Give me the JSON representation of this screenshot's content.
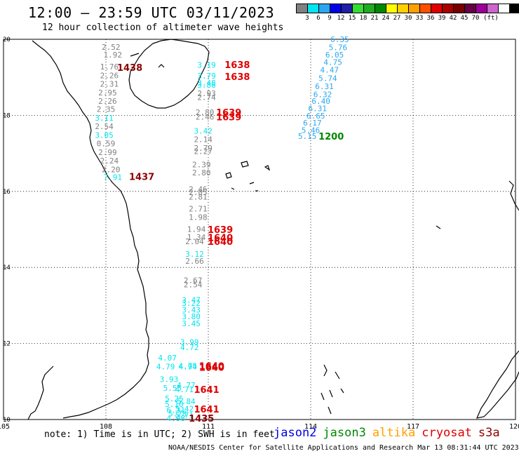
{
  "header": {
    "title": "12:00 – 23:59 UTC 03/11/2023",
    "subtitle": "12 hour collection of altimeter wave heights"
  },
  "colorbar": {
    "colors": [
      "#808080",
      "#00e5f0",
      "#2aa7f0",
      "#0000e6",
      "#2020a0",
      "#33dd33",
      "#22aa22",
      "#008800",
      "#ffff00",
      "#ffd000",
      "#ffa000",
      "#ff5000",
      "#e00000",
      "#aa0000",
      "#770000",
      "#660044",
      "#990099",
      "#cc66cc",
      "#ffffff",
      "#000000"
    ],
    "labels": [
      "3",
      "6",
      "9",
      "12",
      "15",
      "18",
      "21",
      "24",
      "27",
      "30",
      "33",
      "36",
      "39",
      "42",
      "45",
      "70",
      "(ft)"
    ]
  },
  "axes": {
    "lon_ticks": [
      "105",
      "108",
      "111",
      "114",
      "117",
      "120"
    ],
    "lat_ticks": [
      "20",
      "18",
      "16",
      "14",
      "12",
      "10"
    ]
  },
  "chart_data": {
    "type": "scatter",
    "x_axis": "longitude",
    "y_axis": "latitude",
    "xlim": [
      105,
      120
    ],
    "ylim": [
      10,
      20
    ],
    "color_key": {
      "gray": "#808080",
      "cyan": "#00e5f0",
      "blue": "#2aa7f0",
      "red": "#e00000",
      "dred": "#8b0000",
      "green": "#008800"
    },
    "wave_heights": [
      {
        "lon": 108.15,
        "lat": 19.8,
        "v": "2.52",
        "c": "gray"
      },
      {
        "lon": 108.2,
        "lat": 19.59,
        "v": "1.92",
        "c": "gray"
      },
      {
        "lon": 108.1,
        "lat": 19.28,
        "v": "1.76",
        "c": "gray"
      },
      {
        "lon": 108.1,
        "lat": 19.05,
        "v": "2.26",
        "c": "gray"
      },
      {
        "lon": 108.1,
        "lat": 18.83,
        "v": "2.31",
        "c": "gray"
      },
      {
        "lon": 108.05,
        "lat": 18.6,
        "v": "2.95",
        "c": "gray"
      },
      {
        "lon": 108.05,
        "lat": 18.38,
        "v": "2.26",
        "c": "gray"
      },
      {
        "lon": 108.0,
        "lat": 18.16,
        "v": "2.35",
        "c": "gray"
      },
      {
        "lon": 107.95,
        "lat": 17.93,
        "v": "3.11",
        "c": "cyan"
      },
      {
        "lon": 107.95,
        "lat": 17.71,
        "v": "2.54",
        "c": "gray"
      },
      {
        "lon": 107.95,
        "lat": 17.48,
        "v": "3.05",
        "c": "cyan"
      },
      {
        "lon": 108.0,
        "lat": 17.26,
        "v": "0.59",
        "c": "gray"
      },
      {
        "lon": 108.05,
        "lat": 17.03,
        "v": "2.99",
        "c": "gray"
      },
      {
        "lon": 108.1,
        "lat": 16.81,
        "v": "2.24",
        "c": "gray"
      },
      {
        "lon": 108.15,
        "lat": 16.58,
        "v": "2.20",
        "c": "gray"
      },
      {
        "lon": 108.2,
        "lat": 16.37,
        "v": "7.91",
        "c": "cyan"
      },
      {
        "lon": 110.95,
        "lat": 19.33,
        "v": "3.19",
        "c": "cyan"
      },
      {
        "lon": 110.95,
        "lat": 19.04,
        "v": "3.79",
        "c": "cyan"
      },
      {
        "lon": 110.95,
        "lat": 18.86,
        "v": "3.48",
        "c": "cyan"
      },
      {
        "lon": 110.95,
        "lat": 18.8,
        "v": "3.88",
        "c": "cyan"
      },
      {
        "lon": 110.95,
        "lat": 18.58,
        "v": "2.93",
        "c": "gray"
      },
      {
        "lon": 110.95,
        "lat": 18.48,
        "v": "2.74",
        "c": "gray"
      },
      {
        "lon": 110.9,
        "lat": 18.08,
        "v": "2.80",
        "c": "gray"
      },
      {
        "lon": 110.9,
        "lat": 17.96,
        "v": "2.46",
        "c": "gray"
      },
      {
        "lon": 110.85,
        "lat": 17.59,
        "v": "3.42",
        "c": "cyan"
      },
      {
        "lon": 110.85,
        "lat": 17.37,
        "v": "2.14",
        "c": "gray"
      },
      {
        "lon": 110.85,
        "lat": 17.14,
        "v": "2.79",
        "c": "gray"
      },
      {
        "lon": 110.85,
        "lat": 17.06,
        "v": "2.27",
        "c": "gray"
      },
      {
        "lon": 110.8,
        "lat": 16.71,
        "v": "2.39",
        "c": "gray"
      },
      {
        "lon": 110.8,
        "lat": 16.49,
        "v": "2.80",
        "c": "gray"
      },
      {
        "lon": 110.7,
        "lat": 16.06,
        "v": "2.46",
        "c": "gray"
      },
      {
        "lon": 110.7,
        "lat": 15.98,
        "v": "2.05",
        "c": "gray"
      },
      {
        "lon": 110.7,
        "lat": 15.86,
        "v": "2.81",
        "c": "gray"
      },
      {
        "lon": 110.7,
        "lat": 15.54,
        "v": "2.71",
        "c": "gray"
      },
      {
        "lon": 110.7,
        "lat": 15.32,
        "v": "1.98",
        "c": "gray"
      },
      {
        "lon": 110.65,
        "lat": 15.01,
        "v": "1.94",
        "c": "gray"
      },
      {
        "lon": 110.65,
        "lat": 14.8,
        "v": "1.34",
        "c": "gray"
      },
      {
        "lon": 110.6,
        "lat": 14.69,
        "v": "2.04",
        "c": "gray"
      },
      {
        "lon": 110.6,
        "lat": 14.35,
        "v": "3.12",
        "c": "cyan"
      },
      {
        "lon": 110.6,
        "lat": 14.17,
        "v": "2.66",
        "c": "gray"
      },
      {
        "lon": 110.55,
        "lat": 13.66,
        "v": "2.67",
        "c": "gray"
      },
      {
        "lon": 110.55,
        "lat": 13.55,
        "v": "2.54",
        "c": "gray"
      },
      {
        "lon": 110.5,
        "lat": 13.15,
        "v": "3.47",
        "c": "cyan"
      },
      {
        "lon": 110.5,
        "lat": 13.06,
        "v": "3.22",
        "c": "cyan"
      },
      {
        "lon": 110.5,
        "lat": 12.89,
        "v": "3.43",
        "c": "cyan"
      },
      {
        "lon": 110.5,
        "lat": 12.71,
        "v": "3.80",
        "c": "cyan"
      },
      {
        "lon": 110.5,
        "lat": 12.53,
        "v": "3.45",
        "c": "cyan"
      },
      {
        "lon": 110.45,
        "lat": 12.04,
        "v": "3.99",
        "c": "cyan"
      },
      {
        "lon": 110.45,
        "lat": 11.9,
        "v": "4.72",
        "c": "cyan"
      },
      {
        "lon": 109.8,
        "lat": 11.62,
        "v": "4.07",
        "c": "cyan"
      },
      {
        "lon": 109.75,
        "lat": 11.39,
        "v": "4.79",
        "c": "cyan"
      },
      {
        "lon": 110.4,
        "lat": 11.41,
        "v": "4.75",
        "c": "cyan"
      },
      {
        "lon": 110.4,
        "lat": 11.39,
        "v": "4.94",
        "c": "cyan"
      },
      {
        "lon": 109.85,
        "lat": 11.06,
        "v": "3.93",
        "c": "cyan"
      },
      {
        "lon": 110.35,
        "lat": 10.9,
        "v": "4.77",
        "c": "cyan"
      },
      {
        "lon": 109.95,
        "lat": 10.83,
        "v": "5.55",
        "c": "cyan"
      },
      {
        "lon": 110.3,
        "lat": 10.79,
        "v": "4.71",
        "c": "cyan"
      },
      {
        "lon": 110.0,
        "lat": 10.55,
        "v": "5.25",
        "c": "cyan"
      },
      {
        "lon": 110.35,
        "lat": 10.48,
        "v": "5.84",
        "c": "cyan"
      },
      {
        "lon": 110.0,
        "lat": 10.41,
        "v": "5.10",
        "c": "cyan"
      },
      {
        "lon": 110.05,
        "lat": 10.25,
        "v": "6.31",
        "c": "cyan"
      },
      {
        "lon": 110.3,
        "lat": 10.29,
        "v": "5.42",
        "c": "cyan"
      },
      {
        "lon": 110.1,
        "lat": 10.16,
        "v": "5.78",
        "c": "cyan"
      },
      {
        "lon": 110.3,
        "lat": 10.12,
        "v": "5.71",
        "c": "cyan"
      },
      {
        "lon": 110.05,
        "lat": 10.04,
        "v": "4.98",
        "c": "cyan"
      },
      {
        "lon": 114.85,
        "lat": 20.0,
        "v": "6.35",
        "c": "blue"
      },
      {
        "lon": 114.8,
        "lat": 19.79,
        "v": "5.76",
        "c": "blue"
      },
      {
        "lon": 114.7,
        "lat": 19.59,
        "v": "6.05",
        "c": "blue"
      },
      {
        "lon": 114.65,
        "lat": 19.4,
        "v": "4.75",
        "c": "blue"
      },
      {
        "lon": 114.55,
        "lat": 19.2,
        "v": "4.47",
        "c": "blue"
      },
      {
        "lon": 114.5,
        "lat": 18.98,
        "v": "5.74",
        "c": "blue"
      },
      {
        "lon": 114.4,
        "lat": 18.76,
        "v": "6.31",
        "c": "blue"
      },
      {
        "lon": 114.35,
        "lat": 18.55,
        "v": "6.32",
        "c": "blue"
      },
      {
        "lon": 114.3,
        "lat": 18.38,
        "v": "6.40",
        "c": "blue"
      },
      {
        "lon": 114.2,
        "lat": 18.18,
        "v": "6.31",
        "c": "blue"
      },
      {
        "lon": 114.15,
        "lat": 17.99,
        "v": "6.65",
        "c": "blue"
      },
      {
        "lon": 114.05,
        "lat": 17.8,
        "v": "6.17",
        "c": "blue"
      },
      {
        "lon": 114.0,
        "lat": 17.61,
        "v": "5.46",
        "c": "blue"
      },
      {
        "lon": 113.9,
        "lat": 17.45,
        "v": "5.15",
        "c": "blue"
      }
    ],
    "pass_times": [
      {
        "lon": 108.7,
        "lat": 19.26,
        "v": "1438",
        "c": "dred"
      },
      {
        "lon": 109.05,
        "lat": 16.39,
        "v": "1437",
        "c": "dred"
      },
      {
        "lon": 111.85,
        "lat": 19.34,
        "v": "1638",
        "c": "red"
      },
      {
        "lon": 111.85,
        "lat": 19.02,
        "v": "1638",
        "c": "red"
      },
      {
        "lon": 111.6,
        "lat": 18.08,
        "v": "1639",
        "c": "red"
      },
      {
        "lon": 111.6,
        "lat": 17.96,
        "v": "1639",
        "c": "red"
      },
      {
        "lon": 111.35,
        "lat": 15.0,
        "v": "1639",
        "c": "red"
      },
      {
        "lon": 111.35,
        "lat": 14.79,
        "v": "1640",
        "c": "red"
      },
      {
        "lon": 111.35,
        "lat": 14.69,
        "v": "1640",
        "c": "red"
      },
      {
        "lon": 111.1,
        "lat": 11.41,
        "v": "1640",
        "c": "red"
      },
      {
        "lon": 111.1,
        "lat": 11.37,
        "v": "1640",
        "c": "red"
      },
      {
        "lon": 110.95,
        "lat": 10.79,
        "v": "1641",
        "c": "red"
      },
      {
        "lon": 110.95,
        "lat": 10.28,
        "v": "1641",
        "c": "red"
      },
      {
        "lon": 110.8,
        "lat": 10.04,
        "v": "1435",
        "c": "dred"
      },
      {
        "lon": 114.6,
        "lat": 17.45,
        "v": "1200",
        "c": "green"
      }
    ]
  },
  "footer": {
    "note": "note: 1) Time is in UTC; 2) SWH is in feet",
    "credit": "NOAA/NESDIS Center for Satellite Applications and Research    Mar 13 08:31:44 UTC 2023",
    "legend": [
      {
        "name": "jason2",
        "color": "#0000e6"
      },
      {
        "name": "jason3",
        "color": "#008800"
      },
      {
        "name": "altika",
        "color": "#ffa000"
      },
      {
        "name": "cryosat",
        "color": "#e00000"
      },
      {
        "name": "s3a",
        "color": "#8b0000"
      }
    ]
  }
}
